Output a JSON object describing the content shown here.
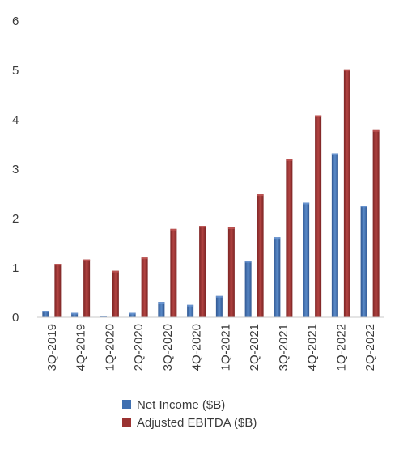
{
  "chart_data": {
    "type": "bar",
    "categories": [
      "3Q-2019",
      "4Q-2019",
      "1Q-2020",
      "2Q-2020",
      "3Q-2020",
      "4Q-2020",
      "1Q-2021",
      "2Q-2021",
      "3Q-2021",
      "4Q-2021",
      "1Q-2022",
      "2Q-2022"
    ],
    "series": [
      {
        "name": "Net Income ($B)",
        "color": "#3f6fb0",
        "values": [
          0.13,
          0.09,
          0.02,
          0.09,
          0.31,
          0.25,
          0.43,
          1.14,
          1.62,
          2.32,
          3.32,
          2.26
        ]
      },
      {
        "name": "Adjusted EBITDA ($B)",
        "color": "#9a3231",
        "values": [
          1.08,
          1.17,
          0.94,
          1.21,
          1.79,
          1.85,
          1.82,
          2.49,
          3.2,
          4.09,
          5.02,
          3.79
        ]
      }
    ],
    "ylim": [
      0,
      6
    ],
    "yticks": [
      0,
      1,
      2,
      3,
      4,
      5,
      6
    ],
    "grid": false,
    "legend_position": "bottom-center",
    "xlabel": "",
    "ylabel": "",
    "title": ""
  }
}
